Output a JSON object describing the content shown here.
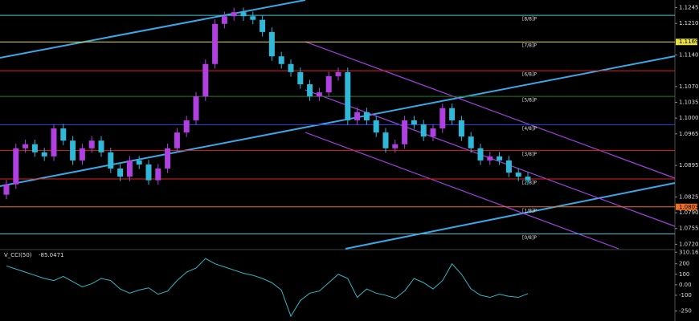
{
  "chart_data": [
    {
      "type": "candlestick",
      "open": [
        1.083,
        1.0853,
        1.0933,
        1.0942,
        1.0924,
        1.0915,
        1.0977,
        1.095,
        1.0906,
        1.0933,
        1.095,
        1.0924,
        1.0888,
        1.087,
        1.0906,
        1.0897,
        1.0862,
        1.0888,
        1.0933,
        1.0968,
        1.0995,
        1.1048,
        1.112,
        1.1209,
        1.1226,
        1.1235,
        1.1226,
        1.1218,
        1.1191,
        1.1137,
        1.112,
        1.1102,
        1.1075,
        1.1048,
        1.1057,
        1.1093,
        1.1102,
        1.0995,
        1.1013,
        1.0995,
        1.0968,
        1.0933,
        1.0942,
        1.0995,
        1.0986,
        1.0959,
        1.0977,
        1.1022,
        1.0995,
        1.0959,
        1.0933,
        1.0906,
        1.0915,
        1.0906,
        1.0879,
        1.087
      ],
      "high": [
        1.0863,
        1.0943,
        1.0952,
        1.0952,
        1.0934,
        1.0987,
        1.0987,
        1.096,
        1.0943,
        1.096,
        1.096,
        1.0934,
        1.0898,
        1.0916,
        1.0916,
        1.0907,
        1.0898,
        1.0943,
        1.0978,
        1.1005,
        1.1058,
        1.113,
        1.1219,
        1.1236,
        1.1245,
        1.1245,
        1.1236,
        1.1228,
        1.1201,
        1.1147,
        1.113,
        1.1112,
        1.1085,
        1.1067,
        1.1103,
        1.1112,
        1.1112,
        1.1023,
        1.1023,
        1.1005,
        1.0978,
        1.0952,
        1.1005,
        1.1005,
        1.0996,
        1.0987,
        1.1032,
        1.1032,
        1.1005,
        1.0969,
        1.0943,
        1.0925,
        1.0925,
        1.0916,
        1.0889,
        1.088
      ],
      "low": [
        1.082,
        1.0843,
        1.0923,
        1.0914,
        1.0905,
        1.0905,
        1.094,
        1.0896,
        1.0896,
        1.0923,
        1.0914,
        1.0878,
        1.086,
        1.086,
        1.0887,
        1.0852,
        1.0852,
        1.0878,
        1.0923,
        1.0958,
        1.0985,
        1.1038,
        1.111,
        1.1199,
        1.1216,
        1.1216,
        1.1208,
        1.1181,
        1.1127,
        1.111,
        1.1092,
        1.1065,
        1.1038,
        1.1038,
        1.1047,
        1.1083,
        1.0985,
        1.0985,
        1.0985,
        1.0958,
        1.0923,
        1.0923,
        1.0932,
        1.0976,
        1.0949,
        1.0949,
        1.0967,
        1.0985,
        1.0949,
        1.0923,
        1.0896,
        1.0896,
        1.0896,
        1.0869,
        1.086,
        1.0852
      ],
      "close": [
        1.0853,
        1.0933,
        1.0942,
        1.0924,
        1.0915,
        1.0977,
        1.095,
        1.0906,
        1.0933,
        1.095,
        1.0924,
        1.0888,
        1.087,
        1.0906,
        1.0897,
        1.0862,
        1.0888,
        1.0933,
        1.0968,
        1.0995,
        1.1048,
        1.112,
        1.1209,
        1.1226,
        1.1235,
        1.1226,
        1.1218,
        1.1191,
        1.1137,
        1.112,
        1.1102,
        1.1075,
        1.1048,
        1.1057,
        1.1093,
        1.1102,
        1.0995,
        1.1013,
        1.0995,
        1.0968,
        1.0933,
        1.0942,
        1.0995,
        1.0986,
        1.0959,
        1.0977,
        1.1022,
        1.0995,
        1.0959,
        1.0933,
        1.0906,
        1.0915,
        1.0906,
        1.0879,
        1.087,
        1.0862
      ],
      "up_color": "#b040e0",
      "down_color": "#30b8d8",
      "ylim": [
        1.071,
        1.1262
      ],
      "yticks": [
        1.1245,
        {
          "value": 1.121,
          "label": "1.1210"
        },
        {
          "value": 1.114,
          "label": "1.1140"
        },
        {
          "value": 1.107,
          "label": "1.1070"
        },
        1.1035,
        {
          "value": 1.1,
          "label": "1.1000"
        },
        1.0965,
        1.0895,
        1.0825,
        {
          "value": 1.079,
          "label": "1.0790"
        },
        1.0755,
        {
          "value": 1.072,
          "label": "1.0720"
        }
      ],
      "levels": [
        {
          "label": "[8/8]P",
          "value": 1.1228,
          "color": "#40c8d8"
        },
        {
          "label": "[7/8]P",
          "value": 1.1169,
          "color": "#e8e040",
          "tag": true
        },
        {
          "label": "[6/8]P",
          "value": 1.1105,
          "color": "#e02020"
        },
        {
          "label": "[5/8]P",
          "value": 1.1048,
          "color": "#208020"
        },
        {
          "label": "[4/8]P",
          "value": 1.0985,
          "color": "#2040e0"
        },
        {
          "label": "[3/8]P",
          "value": 1.0928,
          "color": "#e02020"
        },
        {
          "label": "[2/8]P",
          "value": 1.0865,
          "color": "#e02020"
        },
        {
          "label": "[1/8]P",
          "value": 1.0803,
          "color": "#f07020",
          "tag": true
        },
        {
          "label": "[0/8]P",
          "value": 1.0743,
          "color": "#40c8d8"
        }
      ]
    },
    {
      "type": "line",
      "title": "V_CCI(50)",
      "color": "#30b8c8",
      "values": [
        180,
        150,
        120,
        90,
        60,
        40,
        80,
        30,
        -20,
        10,
        60,
        40,
        -40,
        -80,
        -50,
        -30,
        -90,
        -60,
        40,
        120,
        160,
        250,
        200,
        170,
        140,
        110,
        90,
        60,
        20,
        -50,
        -300,
        -150,
        -80,
        -60,
        20,
        100,
        60,
        -120,
        -40,
        -80,
        -100,
        -130,
        -60,
        60,
        20,
        -40,
        40,
        200,
        100,
        -40,
        -100,
        -120,
        -90,
        -110,
        -120,
        -85.0471
      ],
      "ylim": [
        -330,
        320
      ],
      "yticks": [
        310.167,
        200,
        100,
        {
          "value": 0,
          "label": "0.00"
        },
        -100,
        -250
      ]
    }
  ]
}
